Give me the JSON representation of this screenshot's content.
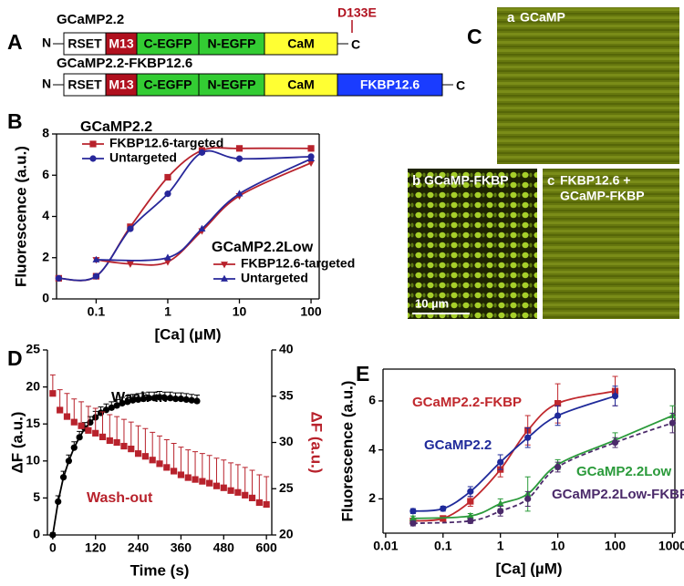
{
  "panel_labels": [
    "A",
    "B",
    "C",
    "D",
    "E"
  ],
  "construct_diagram": {
    "constructs": [
      {
        "name": "GCaMP2.2",
        "mutation": "D133E",
        "n_term": "N",
        "c_term": "C",
        "domains": [
          "RSET",
          "M13",
          "C-EGFP",
          "N-EGFP",
          "CaM"
        ]
      },
      {
        "name": "GCaMP2.2-FKBP12.6",
        "n_term": "N",
        "c_term": "C",
        "domains": [
          "RSET",
          "M13",
          "C-EGFP",
          "N-EGFP",
          "CaM",
          "FKBP12.6"
        ]
      }
    ]
  },
  "micrographs": {
    "panels": [
      {
        "letter": "a",
        "label": "GCaMP"
      },
      {
        "letter": "b",
        "label": "GCaMP-FKBP"
      },
      {
        "letter": "c",
        "label_lines": [
          "FKBP12.6 +",
          "GCaMP-FKBP"
        ]
      }
    ],
    "scale_bar": "10 µm"
  },
  "chart_data": [
    {
      "type": "scatter",
      "xlabel": "[Ca] (µM)",
      "ylabel": "Fluorescence (a.u.)",
      "xlog": true,
      "xlim": [
        0.028,
        130
      ],
      "xticks": [
        0.1,
        1,
        10,
        100
      ],
      "ylim": [
        0,
        8
      ],
      "yticks": [
        0,
        2,
        4,
        6,
        8
      ],
      "legend_titles": [
        "GCaMP2.2",
        "GCaMP2.2Low"
      ],
      "series": [
        {
          "name": "FKBP12.6-targeted",
          "color": "#b8222c",
          "marker": "square",
          "line": "smooth",
          "x": [
            0.03,
            0.1,
            0.3,
            1,
            3,
            10,
            100
          ],
          "values": [
            1.0,
            1.1,
            3.5,
            5.9,
            7.2,
            7.3,
            7.3
          ]
        },
        {
          "name": "Untargeted",
          "color": "#27279a",
          "marker": "circle",
          "line": "smooth",
          "x": [
            0.03,
            0.1,
            0.3,
            1,
            3,
            10,
            100
          ],
          "values": [
            1.0,
            1.1,
            3.4,
            5.1,
            7.1,
            6.8,
            6.9
          ]
        },
        {
          "name": "FKBP12.6-targeted",
          "color": "#b8222c",
          "marker": "triangle-down",
          "line": "smooth",
          "x": [
            0.1,
            0.3,
            1,
            3,
            10,
            100
          ],
          "values": [
            1.9,
            1.7,
            1.8,
            3.3,
            5.0,
            6.6
          ]
        },
        {
          "name": "Untargeted",
          "color": "#27279a",
          "marker": "triangle-up",
          "line": "smooth",
          "x": [
            0.1,
            1,
            3,
            10,
            100
          ],
          "values": [
            1.9,
            2.0,
            3.4,
            5.1,
            6.8
          ]
        }
      ]
    },
    {
      "type": "scatter",
      "xlabel": "Time (s)",
      "ylabel": "ΔF (a.u.)",
      "y2label": "ΔF (a.u.)",
      "y2color": "#b8222c",
      "xlim": [
        -15,
        615
      ],
      "xticks": [
        0,
        120,
        240,
        360,
        480,
        600
      ],
      "ylim": [
        0,
        25
      ],
      "yticks": [
        0,
        5,
        10,
        15,
        20,
        25
      ],
      "y2lim": [
        20,
        40
      ],
      "y2ticks": [
        20,
        25,
        30,
        35,
        40
      ],
      "direct_labels": true,
      "series": [
        {
          "name": "Wash-in",
          "color": "#000000",
          "label_color": "#000000",
          "marker": "circle",
          "line": "straight",
          "error_bars": "upper",
          "x": [
            0,
            15,
            30,
            45,
            60,
            75,
            90,
            105,
            120,
            135,
            150,
            165,
            180,
            195,
            210,
            225,
            240,
            255,
            270,
            285,
            300,
            315,
            330,
            345,
            360,
            375,
            390,
            405
          ],
          "values": [
            0,
            4.5,
            7.8,
            10,
            11.8,
            13.2,
            14.4,
            15.2,
            15.9,
            16.5,
            16.9,
            17.2,
            17.5,
            17.8,
            18,
            18.2,
            18.3,
            18.4,
            18.5,
            18.5,
            18.6,
            18.5,
            18.5,
            18.4,
            18.4,
            18.3,
            18.2,
            18.1
          ],
          "errors": [
            0.3,
            0.8,
            0.8,
            0.8,
            0.8,
            0.8,
            0.8,
            0.8,
            0.8,
            0.8,
            0.8,
            0.8,
            0.8,
            0.8,
            0.8,
            0.8,
            0.8,
            0.8,
            0.8,
            0.8,
            0.8,
            0.8,
            0.8,
            0.8,
            0.8,
            0.8,
            0.8,
            0.8
          ]
        },
        {
          "name": "Wash-out",
          "axis": "y2",
          "color": "#b8222c",
          "label_color": "#b8222c",
          "marker": "square",
          "line": "none",
          "error_bars": "upper",
          "x": [
            0,
            20,
            40,
            60,
            80,
            100,
            120,
            140,
            160,
            180,
            200,
            220,
            240,
            260,
            280,
            300,
            320,
            340,
            360,
            380,
            400,
            420,
            440,
            460,
            480,
            500,
            520,
            540,
            560,
            580,
            600
          ],
          "values": [
            35.3,
            33.5,
            32.8,
            32.2,
            31.8,
            31.3,
            31.0,
            30.6,
            30.2,
            30.0,
            29.6,
            29.3,
            28.8,
            28.5,
            28.1,
            27.7,
            27.3,
            26.9,
            26.5,
            26.2,
            26.0,
            25.8,
            25.6,
            25.3,
            25.1,
            24.8,
            24.6,
            24.3,
            24.0,
            23.5,
            23.3
          ],
          "errors": [
            2,
            2.2,
            2.5,
            2.5,
            2.6,
            2.6,
            2.7,
            2.7,
            2.8,
            2.8,
            2.9,
            2.9,
            3,
            3,
            3,
            3,
            3,
            3,
            3,
            3,
            3,
            3,
            3,
            3,
            3,
            3,
            3,
            3,
            3,
            3,
            3
          ]
        }
      ]
    },
    {
      "type": "scatter",
      "xlabel": "[Ca] (µM)",
      "ylabel": "Fluorescence (a.u.)",
      "xlog": true,
      "xlim": [
        0.009,
        1100
      ],
      "xticks": [
        0.01,
        0.1,
        1,
        10,
        100,
        1000
      ],
      "ylim": [
        0.6,
        7.3
      ],
      "yticks": [
        2,
        4,
        6
      ],
      "direct_labels": true,
      "series": [
        {
          "name": "GCaMP2.2-FKBP",
          "color": "#c0282d",
          "label_color": "#c0282d",
          "marker": "square",
          "line": "smooth",
          "error_bars": "both",
          "x": [
            0.03,
            0.1,
            0.3,
            1,
            3,
            10,
            100
          ],
          "values": [
            1.1,
            1.2,
            1.9,
            3.2,
            4.8,
            5.9,
            6.4
          ],
          "errors": [
            0.1,
            0.1,
            0.2,
            0.3,
            0.6,
            0.8,
            0.6
          ]
        },
        {
          "name": "GCaMP2.2",
          "color": "#1f2a9a",
          "label_color": "#1f2a9a",
          "marker": "circle",
          "line": "smooth",
          "error_bars": "both",
          "x": [
            0.03,
            0.1,
            0.3,
            1,
            3,
            10,
            100
          ],
          "values": [
            1.5,
            1.6,
            2.3,
            3.5,
            4.5,
            5.4,
            6.2
          ],
          "errors": [
            0.1,
            0.1,
            0.2,
            0.3,
            0.4,
            0.4,
            0.4
          ]
        },
        {
          "name": "GCaMP2.2Low",
          "color": "#2a9a3a",
          "label_color": "#2a9a3a",
          "marker": "triangle-up",
          "line": "smooth",
          "error_bars": "both",
          "x": [
            0.03,
            0.3,
            1,
            3,
            10,
            100,
            1000
          ],
          "values": [
            1.2,
            1.3,
            1.8,
            2.2,
            3.4,
            4.4,
            5.4
          ],
          "errors": [
            0.1,
            0.1,
            0.2,
            0.7,
            0.2,
            0.3,
            0.4
          ]
        },
        {
          "name": "GCaMP2.2Low-FKBP",
          "color": "#4b2a6a",
          "label_color": "#4b2a6a",
          "marker": "circle",
          "line": "smooth",
          "dash": true,
          "error_bars": "both",
          "x": [
            0.03,
            0.3,
            1,
            3,
            10,
            100,
            1000
          ],
          "values": [
            1.0,
            1.1,
            1.5,
            2.0,
            3.3,
            4.3,
            5.1
          ],
          "errors": [
            0.1,
            0.1,
            0.2,
            0.3,
            0.2,
            0.2,
            0.4
          ]
        }
      ]
    }
  ]
}
